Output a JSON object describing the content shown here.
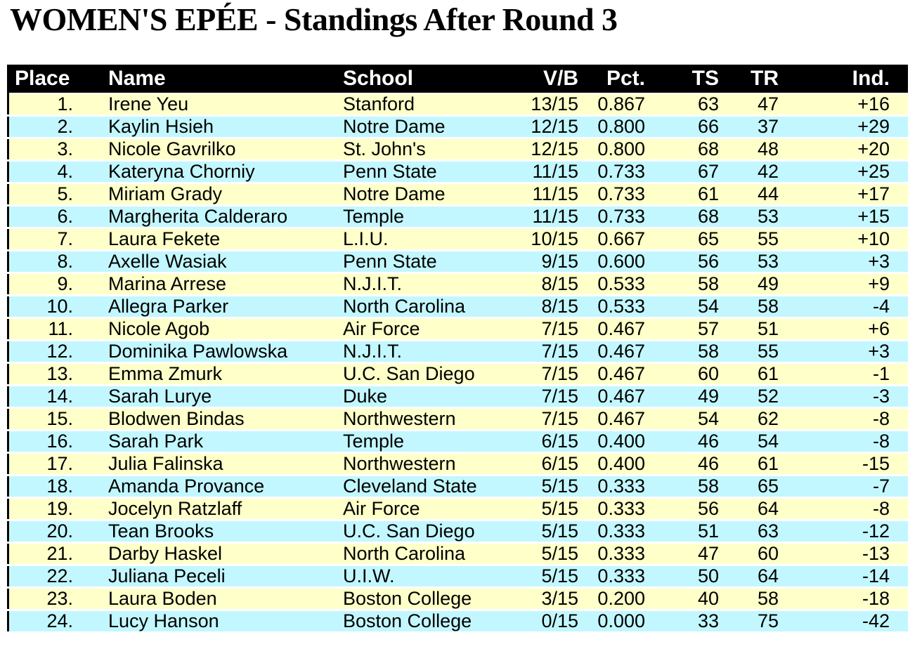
{
  "title": "WOMEN'S EPÉE - Standings After Round 3",
  "table": {
    "header_bg": "#000000",
    "header_text_color": "#FFFFFF",
    "row_colors": [
      "#FFFFC9",
      "#C2F7FF"
    ],
    "columns": [
      {
        "key": "place",
        "label": "Place"
      },
      {
        "key": "name",
        "label": "Name"
      },
      {
        "key": "school",
        "label": "School"
      },
      {
        "key": "vb",
        "label": "V/B"
      },
      {
        "key": "pct",
        "label": "Pct."
      },
      {
        "key": "ts",
        "label": "TS"
      },
      {
        "key": "tr",
        "label": "TR"
      },
      {
        "key": "ind",
        "label": "Ind."
      }
    ],
    "rows": [
      {
        "place": "1.",
        "name": "Irene Yeu",
        "school": "Stanford",
        "vb": "13/15",
        "pct": "0.867",
        "ts": "63",
        "tr": "47",
        "ind": "+16"
      },
      {
        "place": "2.",
        "name": "Kaylin Hsieh",
        "school": "Notre Dame",
        "vb": "12/15",
        "pct": "0.800",
        "ts": "66",
        "tr": "37",
        "ind": "+29"
      },
      {
        "place": "3.",
        "name": "Nicole Gavrilko",
        "school": "St. John's",
        "vb": "12/15",
        "pct": "0.800",
        "ts": "68",
        "tr": "48",
        "ind": "+20"
      },
      {
        "place": "4.",
        "name": "Kateryna Chorniy",
        "school": "Penn State",
        "vb": "11/15",
        "pct": "0.733",
        "ts": "67",
        "tr": "42",
        "ind": "+25"
      },
      {
        "place": "5.",
        "name": "Miriam Grady",
        "school": "Notre Dame",
        "vb": "11/15",
        "pct": "0.733",
        "ts": "61",
        "tr": "44",
        "ind": "+17"
      },
      {
        "place": "6.",
        "name": "Margherita Calderaro",
        "school": "Temple",
        "vb": "11/15",
        "pct": "0.733",
        "ts": "68",
        "tr": "53",
        "ind": "+15"
      },
      {
        "place": "7.",
        "name": "Laura Fekete",
        "school": "L.I.U.",
        "vb": "10/15",
        "pct": "0.667",
        "ts": "65",
        "tr": "55",
        "ind": "+10"
      },
      {
        "place": "8.",
        "name": "Axelle Wasiak",
        "school": "Penn State",
        "vb": "9/15",
        "pct": "0.600",
        "ts": "56",
        "tr": "53",
        "ind": "+3"
      },
      {
        "place": "9.",
        "name": "Marina Arrese",
        "school": "N.J.I.T.",
        "vb": "8/15",
        "pct": "0.533",
        "ts": "58",
        "tr": "49",
        "ind": "+9"
      },
      {
        "place": "10.",
        "name": "Allegra Parker",
        "school": "North Carolina",
        "vb": "8/15",
        "pct": "0.533",
        "ts": "54",
        "tr": "58",
        "ind": "-4"
      },
      {
        "place": "11.",
        "name": "Nicole Agob",
        "school": "Air Force",
        "vb": "7/15",
        "pct": "0.467",
        "ts": "57",
        "tr": "51",
        "ind": "+6"
      },
      {
        "place": "12.",
        "name": "Dominika Pawlowska",
        "school": "N.J.I.T.",
        "vb": "7/15",
        "pct": "0.467",
        "ts": "58",
        "tr": "55",
        "ind": "+3"
      },
      {
        "place": "13.",
        "name": "Emma Zmurk",
        "school": "U.C. San Diego",
        "vb": "7/15",
        "pct": "0.467",
        "ts": "60",
        "tr": "61",
        "ind": "-1"
      },
      {
        "place": "14.",
        "name": "Sarah Lurye",
        "school": "Duke",
        "vb": "7/15",
        "pct": "0.467",
        "ts": "49",
        "tr": "52",
        "ind": "-3"
      },
      {
        "place": "15.",
        "name": "Blodwen Bindas",
        "school": "Northwestern",
        "vb": "7/15",
        "pct": "0.467",
        "ts": "54",
        "tr": "62",
        "ind": "-8"
      },
      {
        "place": "16.",
        "name": "Sarah Park",
        "school": "Temple",
        "vb": "6/15",
        "pct": "0.400",
        "ts": "46",
        "tr": "54",
        "ind": "-8"
      },
      {
        "place": "17.",
        "name": "Julia Falinska",
        "school": "Northwestern",
        "vb": "6/15",
        "pct": "0.400",
        "ts": "46",
        "tr": "61",
        "ind": "-15"
      },
      {
        "place": "18.",
        "name": "Amanda Provance",
        "school": "Cleveland State",
        "vb": "5/15",
        "pct": "0.333",
        "ts": "58",
        "tr": "65",
        "ind": "-7"
      },
      {
        "place": "19.",
        "name": "Jocelyn Ratzlaff",
        "school": "Air Force",
        "vb": "5/15",
        "pct": "0.333",
        "ts": "56",
        "tr": "64",
        "ind": "-8"
      },
      {
        "place": "20.",
        "name": "Tean Brooks",
        "school": "U.C. San Diego",
        "vb": "5/15",
        "pct": "0.333",
        "ts": "51",
        "tr": "63",
        "ind": "-12"
      },
      {
        "place": "21.",
        "name": "Darby Haskel",
        "school": "North Carolina",
        "vb": "5/15",
        "pct": "0.333",
        "ts": "47",
        "tr": "60",
        "ind": "-13"
      },
      {
        "place": "22.",
        "name": "Juliana Peceli",
        "school": "U.I.W.",
        "vb": "5/15",
        "pct": "0.333",
        "ts": "50",
        "tr": "64",
        "ind": "-14"
      },
      {
        "place": "23.",
        "name": "Laura Boden",
        "school": "Boston College",
        "vb": "3/15",
        "pct": "0.200",
        "ts": "40",
        "tr": "58",
        "ind": "-18"
      },
      {
        "place": "24.",
        "name": "Lucy Hanson",
        "school": "Boston College",
        "vb": "0/15",
        "pct": "0.000",
        "ts": "33",
        "tr": "75",
        "ind": "-42"
      }
    ]
  }
}
